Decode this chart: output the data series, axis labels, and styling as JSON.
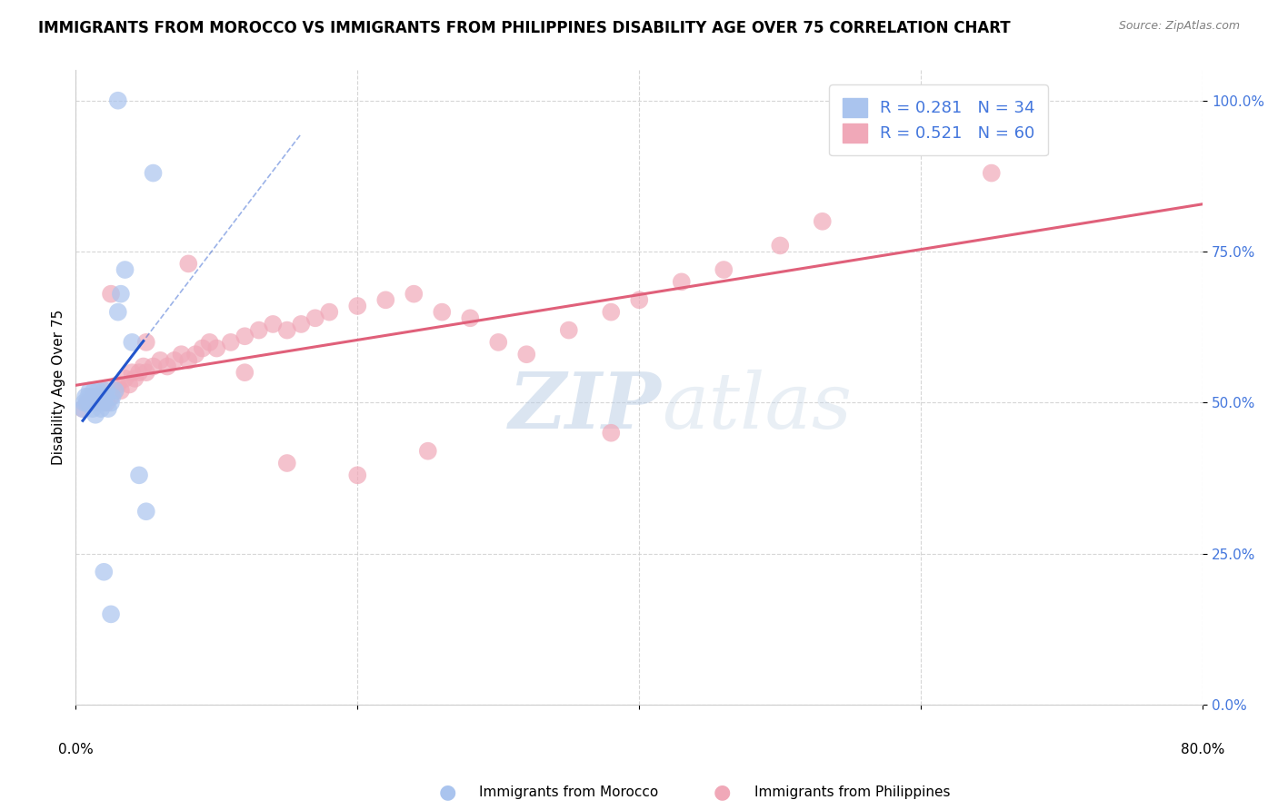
{
  "title": "IMMIGRANTS FROM MOROCCO VS IMMIGRANTS FROM PHILIPPINES DISABILITY AGE OVER 75 CORRELATION CHART",
  "source": "Source: ZipAtlas.com",
  "ylabel": "Disability Age Over 75",
  "watermark_zip": "ZIP",
  "watermark_atlas": "atlas",
  "legend_blue_label": "R = 0.281   N = 34",
  "legend_pink_label": "R = 0.521   N = 60",
  "morocco_color": "#aac4ee",
  "philippines_color": "#f0a8b8",
  "morocco_line_color": "#2255cc",
  "philippines_line_color": "#e0607a",
  "grid_color": "#cccccc",
  "background_color": "#ffffff",
  "tick_color": "#4477dd",
  "title_fontsize": 12,
  "axis_label_fontsize": 11,
  "tick_fontsize": 11,
  "legend_fontsize": 13,
  "xlim": [
    0.0,
    0.8
  ],
  "ylim": [
    0.0,
    1.05
  ],
  "morocco_x": [
    0.005,
    0.006,
    0.007,
    0.008,
    0.009,
    0.01,
    0.01,
    0.011,
    0.012,
    0.013,
    0.014,
    0.015,
    0.015,
    0.016,
    0.017,
    0.018,
    0.019,
    0.02,
    0.021,
    0.022,
    0.023,
    0.025,
    0.026,
    0.028,
    0.03,
    0.032,
    0.035,
    0.04,
    0.045,
    0.05,
    0.03,
    0.055,
    0.02,
    0.025
  ],
  "morocco_y": [
    0.49,
    0.5,
    0.51,
    0.5,
    0.51,
    0.52,
    0.5,
    0.51,
    0.49,
    0.52,
    0.48,
    0.5,
    0.51,
    0.52,
    0.5,
    0.49,
    0.51,
    0.5,
    0.51,
    0.52,
    0.49,
    0.5,
    0.51,
    0.52,
    0.65,
    0.68,
    0.72,
    0.6,
    0.38,
    0.32,
    1.0,
    0.88,
    0.22,
    0.15
  ],
  "philippines_x": [
    0.005,
    0.008,
    0.01,
    0.012,
    0.015,
    0.018,
    0.02,
    0.022,
    0.025,
    0.028,
    0.03,
    0.032,
    0.035,
    0.038,
    0.04,
    0.042,
    0.045,
    0.048,
    0.05,
    0.055,
    0.06,
    0.065,
    0.07,
    0.075,
    0.08,
    0.085,
    0.09,
    0.095,
    0.1,
    0.11,
    0.12,
    0.13,
    0.14,
    0.15,
    0.16,
    0.17,
    0.18,
    0.2,
    0.22,
    0.24,
    0.26,
    0.28,
    0.3,
    0.32,
    0.35,
    0.38,
    0.4,
    0.43,
    0.46,
    0.5,
    0.025,
    0.05,
    0.08,
    0.12,
    0.15,
    0.2,
    0.25,
    0.53,
    0.38,
    0.65
  ],
  "philippines_y": [
    0.49,
    0.5,
    0.5,
    0.51,
    0.5,
    0.51,
    0.52,
    0.5,
    0.51,
    0.52,
    0.53,
    0.52,
    0.54,
    0.53,
    0.55,
    0.54,
    0.55,
    0.56,
    0.55,
    0.56,
    0.57,
    0.56,
    0.57,
    0.58,
    0.57,
    0.58,
    0.59,
    0.6,
    0.59,
    0.6,
    0.61,
    0.62,
    0.63,
    0.62,
    0.63,
    0.64,
    0.65,
    0.66,
    0.67,
    0.68,
    0.65,
    0.64,
    0.6,
    0.58,
    0.62,
    0.65,
    0.67,
    0.7,
    0.72,
    0.76,
    0.68,
    0.6,
    0.73,
    0.55,
    0.4,
    0.38,
    0.42,
    0.8,
    0.45,
    0.88
  ]
}
